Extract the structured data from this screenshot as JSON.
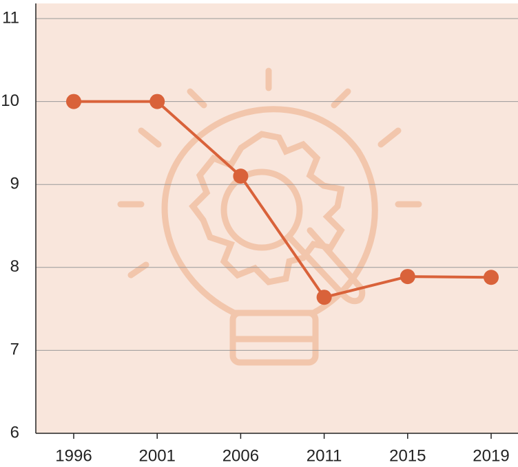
{
  "chart_data": {
    "type": "line",
    "categories": [
      "1996",
      "2001",
      "2006",
      "2011",
      "2015",
      "2019"
    ],
    "series": [
      {
        "name": null,
        "color": "#d9623a",
        "values": [
          10,
          10,
          9.1,
          7.64,
          7.89,
          7.88
        ]
      }
    ],
    "ylim": [
      6,
      11
    ],
    "yticks": [
      6,
      7,
      8,
      9,
      10,
      11
    ],
    "grid": true
  }
}
